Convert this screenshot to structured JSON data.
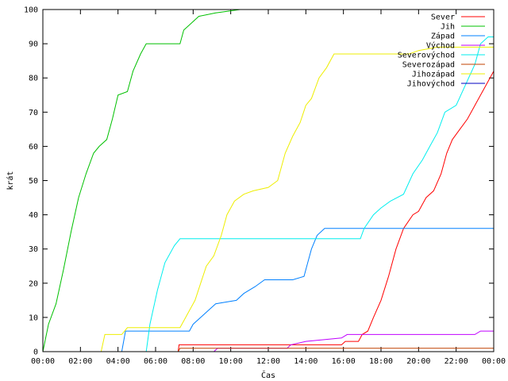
{
  "chart_data": {
    "type": "line",
    "xlabel": "Čas",
    "ylabel": "krát",
    "xlim": [
      0,
      24
    ],
    "ylim": [
      0,
      100
    ],
    "x_ticks": [
      {
        "value": 0,
        "label": "00:00"
      },
      {
        "value": 2,
        "label": "02:00"
      },
      {
        "value": 4,
        "label": "04:00"
      },
      {
        "value": 6,
        "label": "06:00"
      },
      {
        "value": 8,
        "label": "08:00"
      },
      {
        "value": 10,
        "label": "10:00"
      },
      {
        "value": 12,
        "label": "12:00"
      },
      {
        "value": 14,
        "label": "14:00"
      },
      {
        "value": 16,
        "label": "16:00"
      },
      {
        "value": 18,
        "label": "18:00"
      },
      {
        "value": 20,
        "label": "20:00"
      },
      {
        "value": 22,
        "label": "22:00"
      },
      {
        "value": 24,
        "label": "00:00"
      }
    ],
    "y_ticks": [
      0,
      10,
      20,
      30,
      40,
      50,
      60,
      70,
      80,
      90,
      100
    ],
    "grid": false,
    "legend_position": "top-right",
    "series": [
      {
        "name": "Sever",
        "color": "#ff0000",
        "points": [
          [
            7.2,
            0
          ],
          [
            7.25,
            2
          ],
          [
            15.9,
            2
          ],
          [
            16.1,
            3
          ],
          [
            16.8,
            3
          ],
          [
            17,
            5
          ],
          [
            17.3,
            6
          ],
          [
            17.6,
            10
          ],
          [
            18,
            15
          ],
          [
            18.4,
            22
          ],
          [
            18.8,
            30
          ],
          [
            19.2,
            36
          ],
          [
            19.7,
            40
          ],
          [
            20,
            41
          ],
          [
            20.4,
            45
          ],
          [
            20.8,
            47
          ],
          [
            21.2,
            52
          ],
          [
            21.5,
            58
          ],
          [
            21.8,
            62
          ],
          [
            22.2,
            65
          ],
          [
            22.6,
            68
          ],
          [
            23,
            72
          ],
          [
            23.5,
            77
          ],
          [
            24,
            82
          ]
        ]
      },
      {
        "name": "Jih",
        "color": "#00c000",
        "points": [
          [
            0,
            0
          ],
          [
            0.3,
            8
          ],
          [
            0.7,
            14
          ],
          [
            1.1,
            24
          ],
          [
            1.5,
            35
          ],
          [
            1.9,
            45
          ],
          [
            2.3,
            52
          ],
          [
            2.7,
            58
          ],
          [
            3,
            60
          ],
          [
            3.4,
            62
          ],
          [
            3.7,
            68
          ],
          [
            4,
            75
          ],
          [
            4.5,
            76
          ],
          [
            4.8,
            82
          ],
          [
            5.2,
            87
          ],
          [
            5.5,
            90
          ],
          [
            7.3,
            90
          ],
          [
            7.5,
            94
          ],
          [
            7.9,
            96
          ],
          [
            8.3,
            98
          ],
          [
            9.2,
            99
          ],
          [
            10.5,
            100
          ]
        ]
      },
      {
        "name": "Západ",
        "color": "#0080ff",
        "points": [
          [
            4.2,
            0
          ],
          [
            4.4,
            6
          ],
          [
            7.8,
            6
          ],
          [
            8,
            8
          ],
          [
            8.4,
            10
          ],
          [
            8.8,
            12
          ],
          [
            9.2,
            14
          ],
          [
            10.3,
            15
          ],
          [
            10.7,
            17
          ],
          [
            11.3,
            19
          ],
          [
            11.8,
            21
          ],
          [
            13.3,
            21
          ],
          [
            13.9,
            22
          ],
          [
            14.1,
            26
          ],
          [
            14.3,
            30
          ],
          [
            14.6,
            34
          ],
          [
            15,
            36
          ],
          [
            24,
            36
          ]
        ]
      },
      {
        "name": "Východ",
        "color": "#c000ff",
        "points": [
          [
            9.1,
            0
          ],
          [
            9.3,
            1
          ],
          [
            13,
            1
          ],
          [
            13.2,
            2
          ],
          [
            14,
            3
          ],
          [
            15.9,
            4
          ],
          [
            16.2,
            5
          ],
          [
            23,
            5
          ],
          [
            23.3,
            6
          ],
          [
            24,
            6
          ]
        ]
      },
      {
        "name": "Severovýchod",
        "color": "#00eeee",
        "points": [
          [
            5.5,
            0
          ],
          [
            5.7,
            8
          ],
          [
            6.1,
            18
          ],
          [
            6.5,
            26
          ],
          [
            7,
            31
          ],
          [
            7.3,
            33
          ],
          [
            16.9,
            33
          ],
          [
            17.1,
            36
          ],
          [
            17.6,
            40
          ],
          [
            18,
            42
          ],
          [
            18.5,
            44
          ],
          [
            19.2,
            46
          ],
          [
            19.7,
            52
          ],
          [
            20.2,
            56
          ],
          [
            20.6,
            60
          ],
          [
            21,
            64
          ],
          [
            21.4,
            70
          ],
          [
            22,
            72
          ],
          [
            22.5,
            78
          ],
          [
            23,
            84
          ],
          [
            23.3,
            90
          ],
          [
            23.7,
            92
          ],
          [
            24,
            92
          ]
        ]
      },
      {
        "name": "Severozápad",
        "color": "#c04000",
        "points": [
          [
            7.2,
            0
          ],
          [
            7.3,
            1
          ],
          [
            24,
            1
          ]
        ]
      },
      {
        "name": "Jihozápad",
        "color": "#eeee00",
        "points": [
          [
            3.1,
            0
          ],
          [
            3.3,
            5
          ],
          [
            4.2,
            5
          ],
          [
            4.5,
            7
          ],
          [
            7.3,
            7
          ],
          [
            7.5,
            9
          ],
          [
            7.8,
            12
          ],
          [
            8.1,
            15
          ],
          [
            8.4,
            20
          ],
          [
            8.7,
            25
          ],
          [
            9.1,
            28
          ],
          [
            9.5,
            34
          ],
          [
            9.8,
            40
          ],
          [
            10.2,
            44
          ],
          [
            10.7,
            46
          ],
          [
            11.2,
            47
          ],
          [
            12,
            48
          ],
          [
            12.5,
            50
          ],
          [
            12.9,
            58
          ],
          [
            13.3,
            63
          ],
          [
            13.7,
            67
          ],
          [
            14,
            72
          ],
          [
            14.3,
            74
          ],
          [
            14.7,
            80
          ],
          [
            15.1,
            83
          ],
          [
            15.5,
            87
          ],
          [
            19.5,
            87
          ],
          [
            20,
            88
          ],
          [
            21,
            89
          ],
          [
            24,
            89
          ]
        ]
      },
      {
        "name": "Jihovýchod",
        "color": "#0000c0",
        "points": []
      }
    ]
  }
}
